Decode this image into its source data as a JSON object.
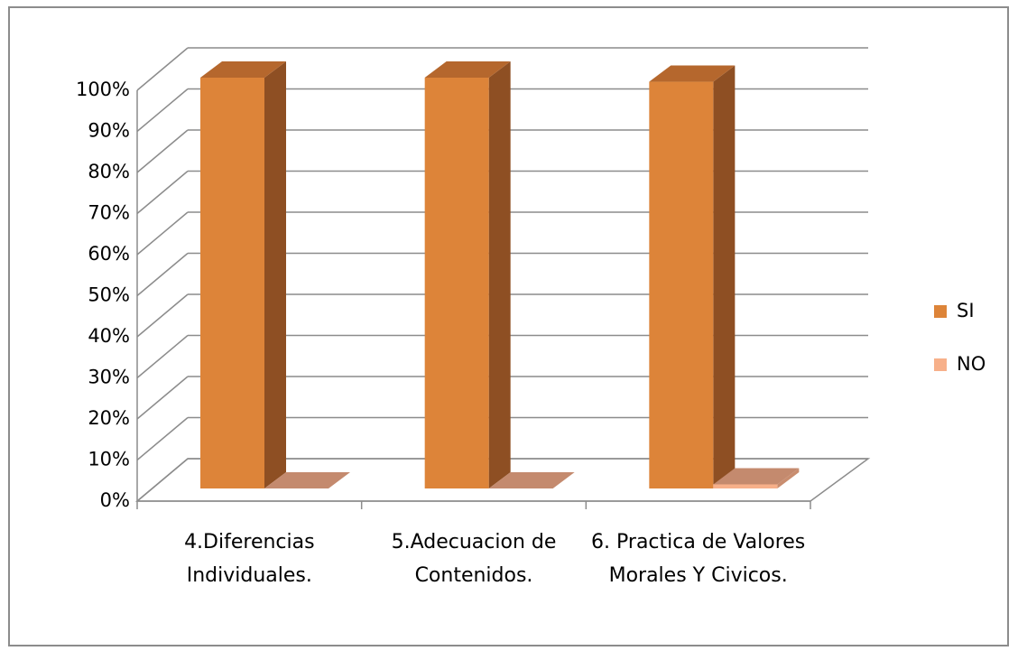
{
  "chart_data": {
    "type": "bar3d",
    "categories": [
      "4.Diferencias Individuales.",
      "5.Adecuacion de Contenidos.",
      "6. Practica de Valores Morales Y Civicos."
    ],
    "series": [
      {
        "name": "SI",
        "color": "#dd8439",
        "values": [
          100,
          100,
          99
        ]
      },
      {
        "name": "NO",
        "color": "#f7b08a",
        "values": [
          0,
          0,
          1
        ]
      }
    ],
    "ylim": [
      0,
      100
    ],
    "yticks": [
      {
        "value": 0,
        "label": "0%"
      },
      {
        "value": 10,
        "label": "10%"
      },
      {
        "value": 20,
        "label": "20%"
      },
      {
        "value": 30,
        "label": "30%"
      },
      {
        "value": 40,
        "label": "40%"
      },
      {
        "value": 50,
        "label": "50%"
      },
      {
        "value": 60,
        "label": "60%"
      },
      {
        "value": 70,
        "label": "70%"
      },
      {
        "value": 80,
        "label": "80%"
      },
      {
        "value": 90,
        "label": "90%"
      },
      {
        "value": 100,
        "label": "100%"
      }
    ],
    "grid": true,
    "legend": "right"
  }
}
